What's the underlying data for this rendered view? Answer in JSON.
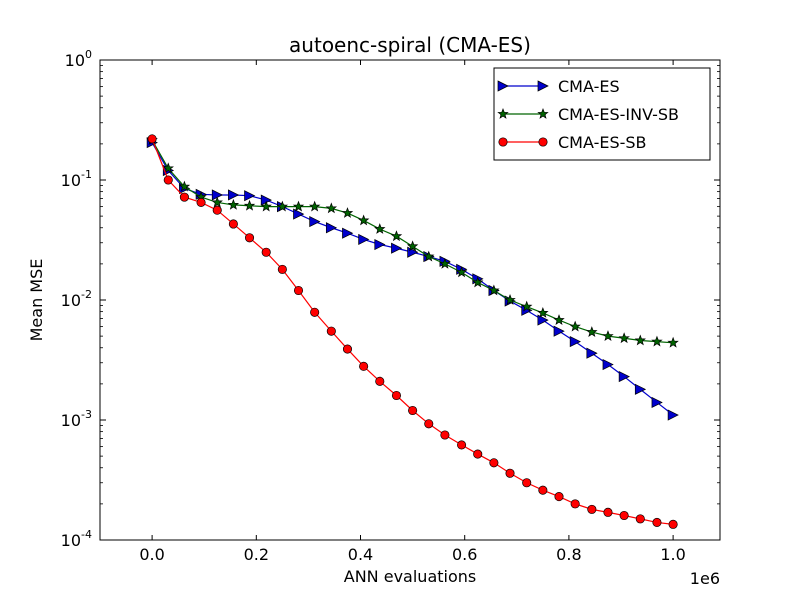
{
  "chart_data": {
    "type": "line",
    "title": "autoenc-spiral (CMA-ES)",
    "xlabel": "ANN evaluations",
    "ylabel": "Mean MSE",
    "x_offset_label": "1e6",
    "xscale": "linear",
    "yscale": "log",
    "xlim": [
      -0.1,
      1.09
    ],
    "ylim": [
      0.0001,
      1
    ],
    "xticks": [
      0.0,
      0.2,
      0.4,
      0.6,
      0.8,
      1.0
    ],
    "xtick_labels": [
      "0.0",
      "0.2",
      "0.4",
      "0.6",
      "0.8",
      "1.0"
    ],
    "yticks": [
      0.0001,
      0.001,
      0.01,
      0.1,
      1
    ],
    "ytick_labels": [
      {
        "base": "10",
        "exp": "-4"
      },
      {
        "base": "10",
        "exp": "-3"
      },
      {
        "base": "10",
        "exp": "-2"
      },
      {
        "base": "10",
        "exp": "-1"
      },
      {
        "base": "10",
        "exp": "0"
      }
    ],
    "grid": false,
    "legend_position": "top-right",
    "series": [
      {
        "name": "CMA-ES",
        "color": "#0000cc",
        "marker": "triangle-right",
        "x": [
          0.0,
          0.031,
          0.062,
          0.094,
          0.125,
          0.156,
          0.187,
          0.219,
          0.25,
          0.281,
          0.312,
          0.344,
          0.375,
          0.406,
          0.437,
          0.469,
          0.5,
          0.531,
          0.562,
          0.594,
          0.625,
          0.656,
          0.687,
          0.719,
          0.75,
          0.781,
          0.812,
          0.844,
          0.875,
          0.906,
          0.937,
          0.969,
          1.0
        ],
        "y": [
          0.205,
          0.12,
          0.085,
          0.076,
          0.075,
          0.075,
          0.074,
          0.068,
          0.06,
          0.052,
          0.045,
          0.04,
          0.036,
          0.032,
          0.029,
          0.027,
          0.025,
          0.023,
          0.021,
          0.018,
          0.015,
          0.012,
          0.0098,
          0.0082,
          0.0068,
          0.0055,
          0.0045,
          0.0036,
          0.0029,
          0.0023,
          0.0018,
          0.0014,
          0.0011
        ]
      },
      {
        "name": "CMA-ES-INV-SB",
        "color": "#006400",
        "marker": "star",
        "x": [
          0.0,
          0.031,
          0.062,
          0.094,
          0.125,
          0.156,
          0.187,
          0.219,
          0.25,
          0.281,
          0.312,
          0.344,
          0.375,
          0.406,
          0.437,
          0.469,
          0.5,
          0.531,
          0.562,
          0.594,
          0.625,
          0.656,
          0.687,
          0.719,
          0.75,
          0.781,
          0.812,
          0.844,
          0.875,
          0.906,
          0.937,
          0.969,
          1.0
        ],
        "y": [
          0.215,
          0.125,
          0.088,
          0.072,
          0.065,
          0.062,
          0.061,
          0.06,
          0.06,
          0.06,
          0.06,
          0.058,
          0.053,
          0.046,
          0.039,
          0.034,
          0.028,
          0.023,
          0.02,
          0.017,
          0.014,
          0.012,
          0.01,
          0.0088,
          0.0078,
          0.0068,
          0.006,
          0.0054,
          0.005,
          0.0048,
          0.0046,
          0.0045,
          0.0044
        ]
      },
      {
        "name": "CMA-ES-SB",
        "color": "#ff0000",
        "marker": "circle",
        "x": [
          0.0,
          0.031,
          0.062,
          0.094,
          0.125,
          0.156,
          0.187,
          0.219,
          0.25,
          0.281,
          0.312,
          0.344,
          0.375,
          0.406,
          0.437,
          0.469,
          0.5,
          0.531,
          0.562,
          0.594,
          0.625,
          0.656,
          0.687,
          0.719,
          0.75,
          0.781,
          0.812,
          0.844,
          0.875,
          0.906,
          0.937,
          0.969,
          1.0
        ],
        "y": [
          0.22,
          0.1,
          0.072,
          0.065,
          0.056,
          0.043,
          0.033,
          0.025,
          0.018,
          0.012,
          0.0079,
          0.0055,
          0.0039,
          0.0028,
          0.0021,
          0.0016,
          0.0012,
          0.00093,
          0.00075,
          0.00062,
          0.00052,
          0.00044,
          0.00036,
          0.0003,
          0.00026,
          0.00023,
          0.0002,
          0.00018,
          0.00017,
          0.00016,
          0.00015,
          0.00014,
          0.000135
        ]
      }
    ]
  }
}
